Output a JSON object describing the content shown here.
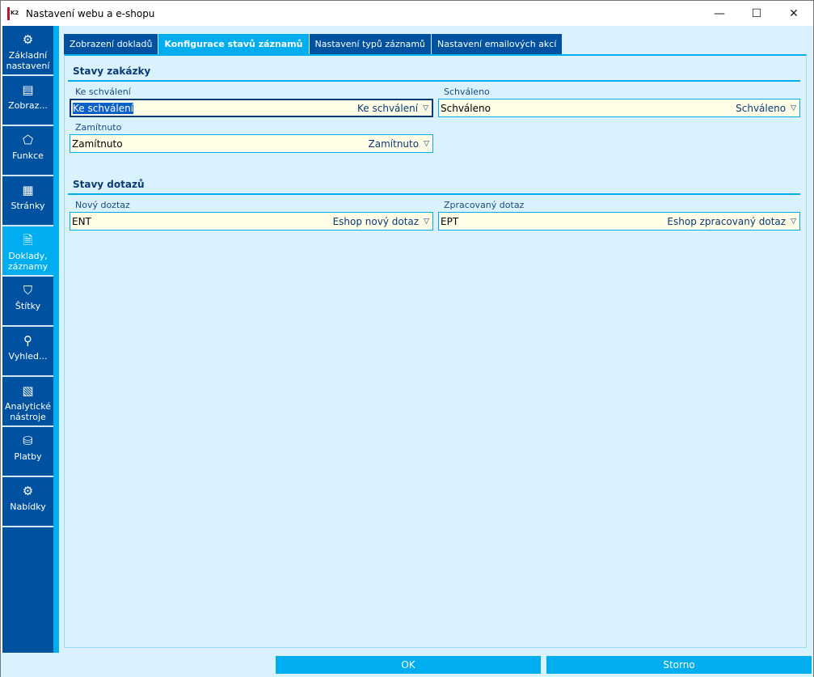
{
  "window": {
    "title": "Nastavení webu a e-shopu",
    "logo": "K2"
  },
  "sidebar": {
    "items": [
      {
        "label": "Základní nastavení",
        "icon": "gear-icon",
        "glyph": "⚙"
      },
      {
        "label": "Zobraz...",
        "icon": "list-icon",
        "glyph": "▤"
      },
      {
        "label": "Funkce",
        "icon": "tag-icon",
        "glyph": "⬠"
      },
      {
        "label": "Stránky",
        "icon": "page-icon",
        "glyph": "▦"
      },
      {
        "label": "Doklady, záznamy",
        "icon": "document-icon",
        "glyph": "🗎",
        "active": true
      },
      {
        "label": "Štítky",
        "icon": "bookmark-icon",
        "glyph": "⛉"
      },
      {
        "label": "Vyhled...",
        "icon": "search-icon",
        "glyph": "⚲"
      },
      {
        "label": "Analytické nástroje",
        "icon": "chart-icon",
        "glyph": "▧"
      },
      {
        "label": "Platby",
        "icon": "payment-icon",
        "glyph": "⛁"
      },
      {
        "label": "Nabídky",
        "icon": "discount-icon",
        "glyph": "⚙"
      }
    ]
  },
  "tabs": [
    {
      "label": "Zobrazení dokladů"
    },
    {
      "label": "Konfigurace stavů záznamů",
      "active": true
    },
    {
      "label": "Nastavení typů záznamů"
    },
    {
      "label": "Nastavení emailových akcí"
    }
  ],
  "sections": {
    "orders": {
      "title": "Stavy zakázky",
      "fields": [
        {
          "label": "Ke schválení",
          "value": "Ke schválení",
          "display": "Ke schválení"
        },
        {
          "label": "Schváleno",
          "value": "Schváleno",
          "display": "Schváleno"
        },
        {
          "label": "Zamítnuto",
          "value": "Zamítnuto",
          "display": "Zamítnuto"
        }
      ]
    },
    "inquiries": {
      "title": "Stavy dotazů",
      "fields": [
        {
          "label": "Nový doztaz",
          "value": "ENT",
          "display": "Eshop nový dotaz"
        },
        {
          "label": "Zpracovaný dotaz",
          "value": "EPT",
          "display": "Eshop zpracovaný dotaz"
        }
      ]
    }
  },
  "buttons": {
    "ok": "OK",
    "cancel": "Storno"
  },
  "colors": {
    "primary": "#0052a0",
    "accent": "#00aeef",
    "background": "#d9f2fd",
    "field": "#fffde6"
  }
}
